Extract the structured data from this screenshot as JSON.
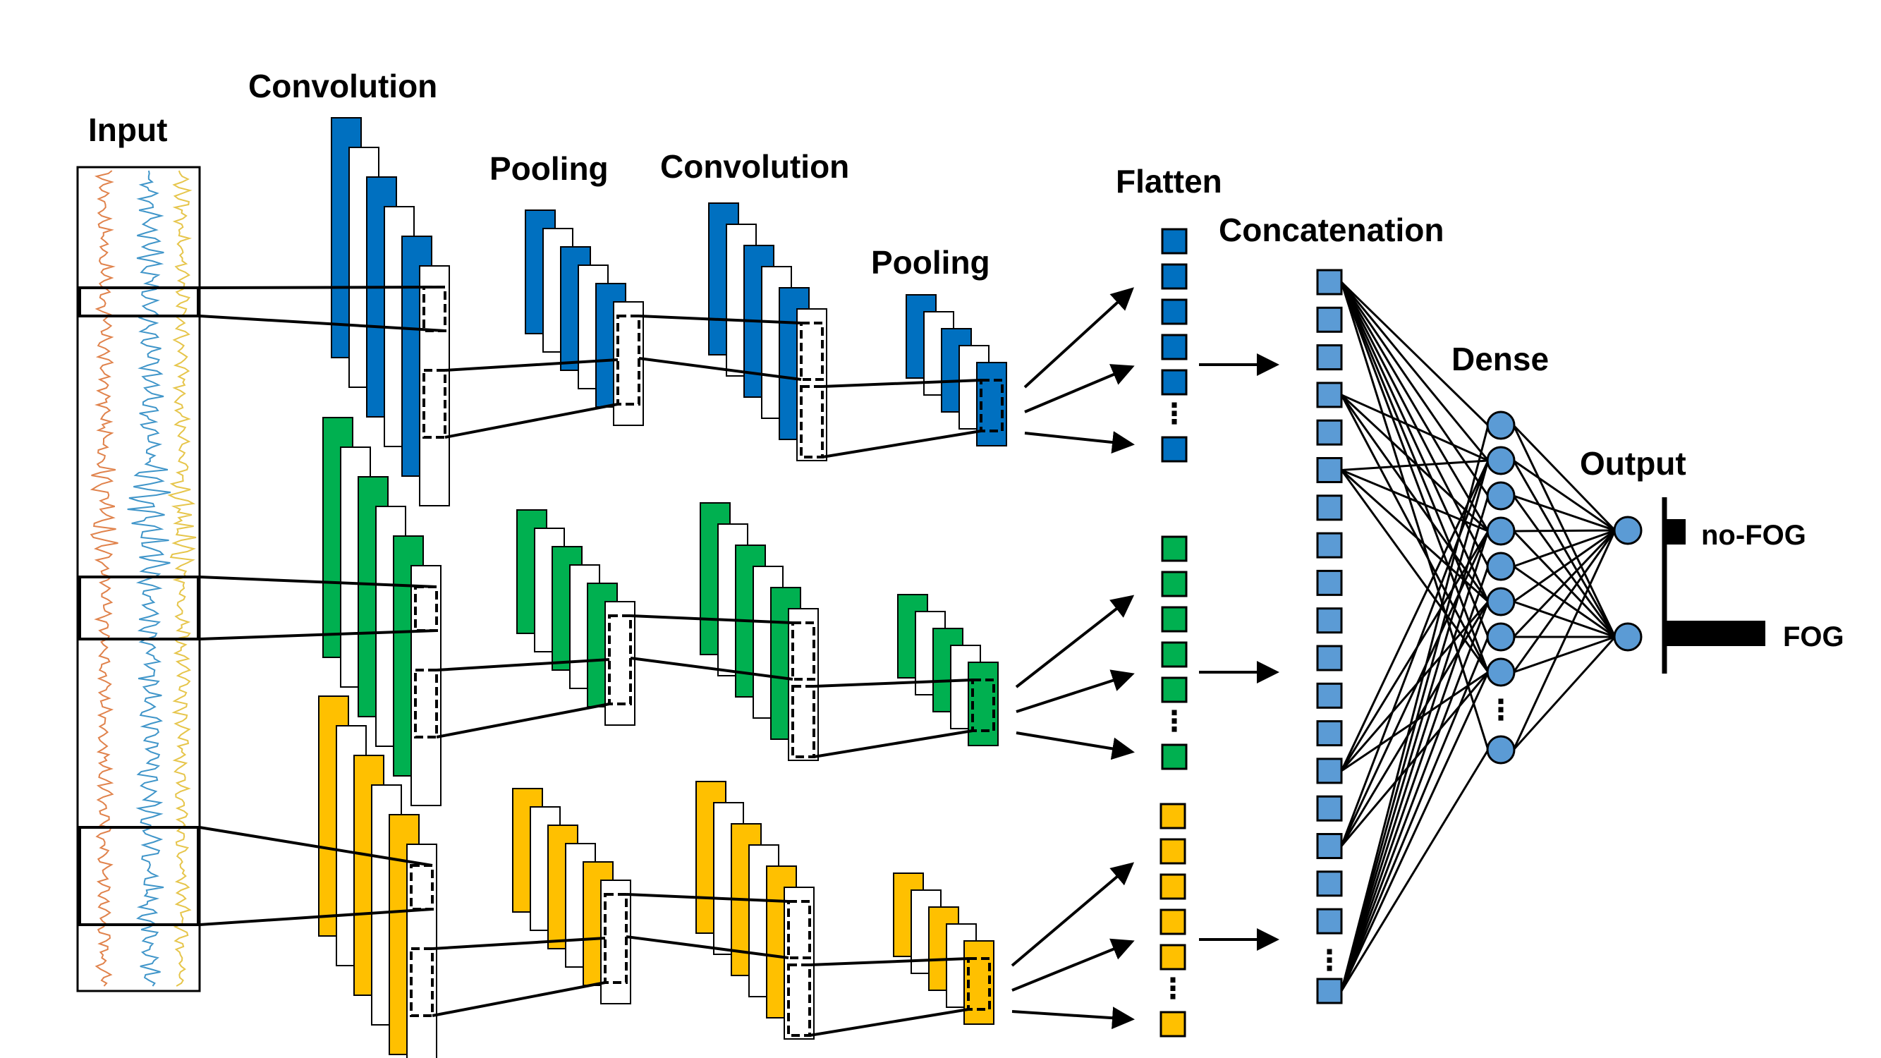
{
  "labels": {
    "input": "Input",
    "convolution_1": "Convolution",
    "pooling_1": "Pooling",
    "convolution_2": "Convolution",
    "pooling_2": "Pooling",
    "flatten": "Flatten",
    "concatenation": "Concatenation",
    "dense": "Dense",
    "output": "Output",
    "dots": "⋮"
  },
  "outputs": [
    {
      "label": "no-FOG",
      "level": 0.19
    },
    {
      "label": "FOG",
      "level": 1.0
    }
  ],
  "branches": [
    {
      "name": "branch-1",
      "color": "#0070c0"
    },
    {
      "name": "branch-2",
      "color": "#00b050"
    },
    {
      "name": "branch-3",
      "color": "#ffc000"
    }
  ],
  "concat_color": "#5b9bd5",
  "signal_colors": [
    "#e0824b",
    "#3f95c9",
    "#e6c54a"
  ]
}
